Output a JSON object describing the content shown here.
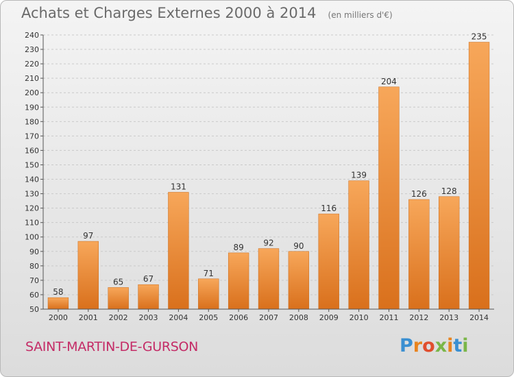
{
  "chart_data": {
    "type": "bar",
    "title": "Achats et Charges Externes 2000 à 2014",
    "subtitle": "(en milliers d'€)",
    "categories": [
      "2000",
      "2001",
      "2002",
      "2003",
      "2004",
      "2005",
      "2006",
      "2007",
      "2008",
      "2009",
      "2010",
      "2011",
      "2012",
      "2013",
      "2014"
    ],
    "values": [
      58,
      97,
      65,
      67,
      131,
      71,
      89,
      92,
      90,
      116,
      139,
      204,
      126,
      128,
      235
    ],
    "ylim": [
      50,
      240
    ],
    "yticks": [
      50,
      60,
      70,
      80,
      90,
      100,
      110,
      120,
      130,
      140,
      150,
      160,
      170,
      180,
      190,
      200,
      210,
      220,
      230,
      240
    ],
    "grid": true,
    "bar_color_top": "#f7a75a",
    "bar_color_bottom": "#d9701c"
  },
  "footer": {
    "commune": "SAINT-MARTIN-DE-GURSON",
    "logo_text": "Proxiti",
    "logo_colors": [
      "#3a8fd1",
      "#e8841f",
      "#e04e2e",
      "#7ab648",
      "#e8841f",
      "#3a8fd1",
      "#7ab648"
    ]
  }
}
